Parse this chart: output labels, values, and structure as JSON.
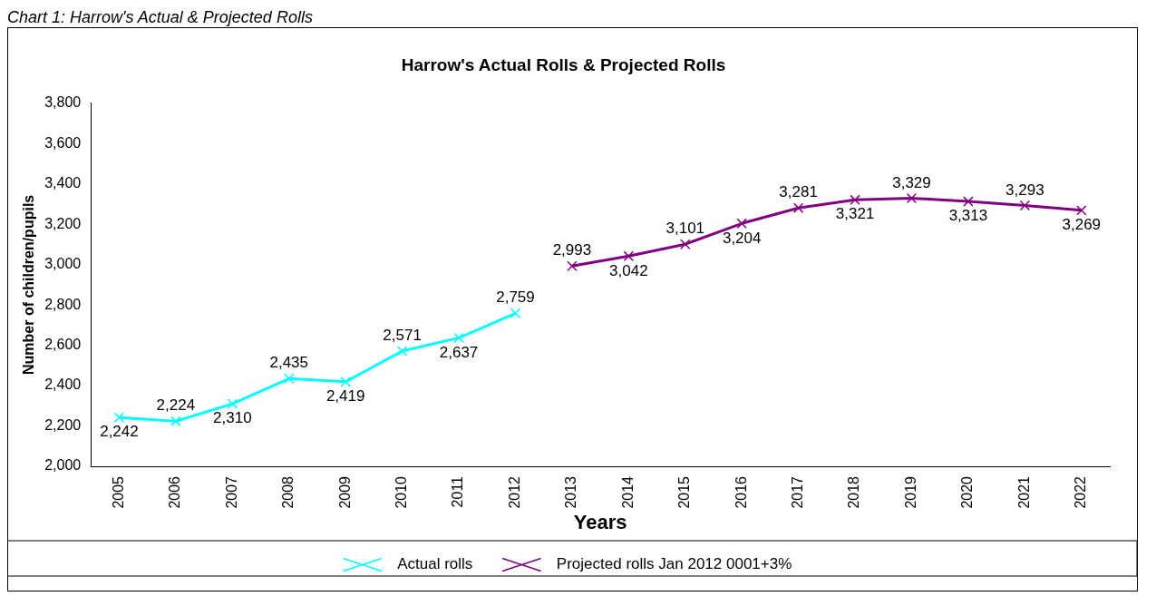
{
  "chart_data": {
    "type": "line",
    "title": "Harrow's Actual Rolls & Projected Rolls",
    "xlabel": "Years",
    "ylabel": "Number of children/pupils",
    "annotations": [
      "Chart 1: Harrow's Actual & Projected Rolls"
    ],
    "categories": [
      "2005",
      "2006",
      "2007",
      "2008",
      "2009",
      "2010",
      "2011",
      "2012",
      "2013",
      "2014",
      "2015",
      "2016",
      "2017",
      "2018",
      "2019",
      "2020",
      "2021",
      "2022"
    ],
    "series": [
      {
        "name": "Actual rolls",
        "color": "#00ffff",
        "marker": "cross",
        "values": [
          2242,
          2224,
          2310,
          2435,
          2419,
          2571,
          2637,
          2759,
          null,
          null,
          null,
          null,
          null,
          null,
          null,
          null,
          null,
          null
        ],
        "value_labels": [
          "2,242",
          "2,224",
          "2,310",
          "2,435",
          "2,419",
          "2,571",
          "2,637",
          "2,759",
          null,
          null,
          null,
          null,
          null,
          null,
          null,
          null,
          null,
          null
        ]
      },
      {
        "name": "Projected rolls Jan 2012 0001+3%",
        "color": "#800080",
        "marker": "cross",
        "values": [
          null,
          null,
          null,
          null,
          null,
          null,
          null,
          null,
          2993,
          3042,
          3101,
          3204,
          3281,
          3321,
          3329,
          3313,
          3293,
          3269
        ],
        "value_labels": [
          null,
          null,
          null,
          null,
          null,
          null,
          null,
          null,
          "2,993",
          "3,042",
          "3,101",
          "3,204",
          "3,281",
          "3,321",
          "3,329",
          "3,313",
          "3,293",
          "3,269"
        ]
      }
    ],
    "ylim": [
      2000,
      3800
    ],
    "yticks": [
      {
        "value": 2000,
        "label": "2,000"
      },
      {
        "value": 2200,
        "label": "2,200"
      },
      {
        "value": 2400,
        "label": "2,400"
      },
      {
        "value": 2600,
        "label": "2,600"
      },
      {
        "value": 2800,
        "label": "2,800"
      },
      {
        "value": 3000,
        "label": "3,000"
      },
      {
        "value": 3200,
        "label": "3,200"
      },
      {
        "value": 3400,
        "label": "3,400"
      },
      {
        "value": 3600,
        "label": "3,600"
      },
      {
        "value": 3800,
        "label": "3,800"
      }
    ],
    "grid": false,
    "legend": "bottom",
    "line_style": "solid"
  }
}
